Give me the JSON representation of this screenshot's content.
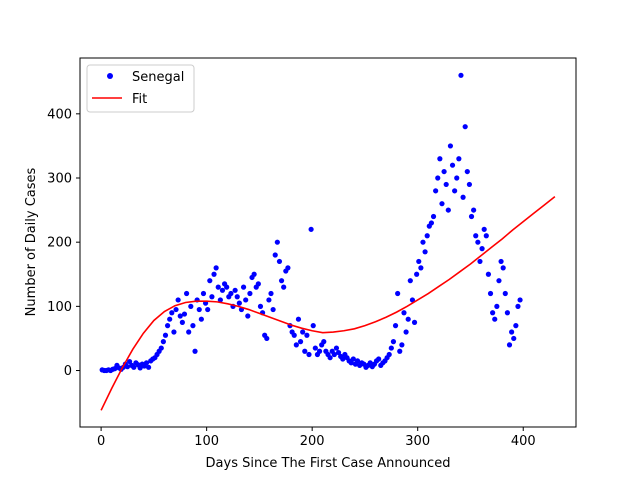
{
  "chart_data": {
    "type": "scatter",
    "title": "",
    "xlabel": "Days Since The First Case Announced",
    "ylabel": "Number of Daily Cases",
    "xlim": [
      -20,
      450
    ],
    "ylim": [
      -88,
      487
    ],
    "xticks": [
      0,
      100,
      200,
      300,
      400
    ],
    "yticks": [
      0,
      100,
      200,
      300,
      400
    ],
    "grid": false,
    "legend_position": "top-left",
    "series": [
      {
        "name": "Senegal",
        "kind": "points",
        "color": "#0000ff",
        "x": [
          1,
          3,
          5,
          7,
          9,
          11,
          13,
          15,
          17,
          19,
          21,
          23,
          25,
          27,
          29,
          31,
          33,
          35,
          37,
          39,
          41,
          43,
          45,
          47,
          49,
          51,
          53,
          55,
          57,
          59,
          61,
          63,
          65,
          67,
          69,
          71,
          73,
          75,
          77,
          79,
          81,
          83,
          85,
          87,
          89,
          91,
          93,
          95,
          97,
          99,
          101,
          103,
          105,
          107,
          109,
          111,
          113,
          115,
          117,
          119,
          121,
          123,
          125,
          127,
          129,
          131,
          133,
          135,
          137,
          139,
          141,
          143,
          145,
          147,
          149,
          151,
          153,
          155,
          157,
          159,
          161,
          163,
          165,
          167,
          169,
          171,
          173,
          175,
          177,
          179,
          181,
          183,
          185,
          187,
          189,
          191,
          193,
          195,
          197,
          199,
          201,
          203,
          205,
          207,
          209,
          211,
          213,
          215,
          217,
          219,
          221,
          223,
          225,
          227,
          229,
          231,
          233,
          235,
          237,
          239,
          241,
          243,
          245,
          247,
          249,
          251,
          253,
          255,
          257,
          259,
          261,
          263,
          265,
          267,
          269,
          271,
          273,
          275,
          277,
          279,
          281,
          283,
          285,
          287,
          289,
          291,
          293,
          295,
          297,
          299,
          301,
          303,
          305,
          307,
          309,
          311,
          313,
          315,
          317,
          319,
          321,
          323,
          325,
          327,
          329,
          331,
          333,
          335,
          337,
          339,
          341,
          343,
          345,
          347,
          349,
          351,
          353,
          355,
          357,
          359,
          361,
          363,
          365,
          367,
          369,
          371,
          373,
          375,
          377,
          379,
          381,
          383,
          385,
          387,
          389,
          391,
          393,
          395,
          397
        ],
        "y": [
          1,
          0,
          0,
          1,
          0,
          2,
          3,
          8,
          4,
          2,
          5,
          10,
          6,
          14,
          8,
          5,
          12,
          9,
          4,
          10,
          7,
          12,
          5,
          15,
          18,
          20,
          25,
          30,
          35,
          45,
          55,
          70,
          80,
          90,
          60,
          95,
          110,
          85,
          75,
          88,
          120,
          60,
          100,
          70,
          30,
          110,
          95,
          80,
          120,
          105,
          95,
          140,
          115,
          150,
          160,
          130,
          110,
          125,
          135,
          130,
          115,
          120,
          100,
          125,
          115,
          105,
          95,
          130,
          110,
          85,
          120,
          145,
          150,
          130,
          135,
          100,
          90,
          55,
          50,
          110,
          120,
          95,
          180,
          200,
          170,
          140,
          130,
          155,
          160,
          70,
          60,
          55,
          40,
          80,
          45,
          60,
          30,
          55,
          25,
          220,
          70,
          35,
          25,
          30,
          40,
          45,
          30,
          25,
          20,
          30,
          25,
          35,
          28,
          22,
          18,
          25,
          20,
          15,
          12,
          18,
          10,
          15,
          8,
          12,
          10,
          5,
          8,
          12,
          6,
          10,
          15,
          18,
          8,
          12,
          15,
          20,
          25,
          35,
          45,
          70,
          120,
          30,
          40,
          90,
          60,
          80,
          140,
          110,
          75,
          150,
          170,
          160,
          200,
          185,
          210,
          225,
          230,
          240,
          280,
          300,
          330,
          260,
          310,
          290,
          250,
          350,
          320,
          280,
          300,
          330,
          460,
          270,
          380,
          310,
          290,
          240,
          250,
          210,
          200,
          170,
          190,
          220,
          210,
          150,
          120,
          90,
          80,
          100,
          140,
          170,
          160,
          120,
          90,
          40,
          60,
          50,
          70,
          100,
          110
        ]
      },
      {
        "name": "Fit",
        "kind": "line",
        "color": "#ff0000",
        "x": [
          0,
          10,
          20,
          30,
          40,
          50,
          60,
          70,
          80,
          90,
          100,
          110,
          120,
          130,
          140,
          150,
          160,
          170,
          180,
          190,
          200,
          210,
          220,
          230,
          240,
          250,
          260,
          270,
          280,
          290,
          300,
          310,
          320,
          330,
          340,
          350,
          360,
          370,
          380,
          390,
          400,
          410,
          420,
          430
        ],
        "y": [
          -62,
          -28,
          4,
          33,
          58,
          78,
          92,
          101,
          106,
          108,
          108,
          107,
          104,
          100,
          95,
          89,
          83,
          77,
          71,
          66,
          62,
          59,
          60,
          62,
          65,
          70,
          76,
          83,
          91,
          100,
          110,
          120,
          131,
          142,
          154,
          166,
          179,
          192,
          205,
          219,
          232,
          245,
          258,
          271
        ]
      }
    ]
  },
  "legend": {
    "items": [
      {
        "label": "Senegal",
        "color": "#0000ff",
        "marker": "dot"
      },
      {
        "label": "Fit",
        "color": "#ff0000",
        "marker": "line"
      }
    ]
  }
}
